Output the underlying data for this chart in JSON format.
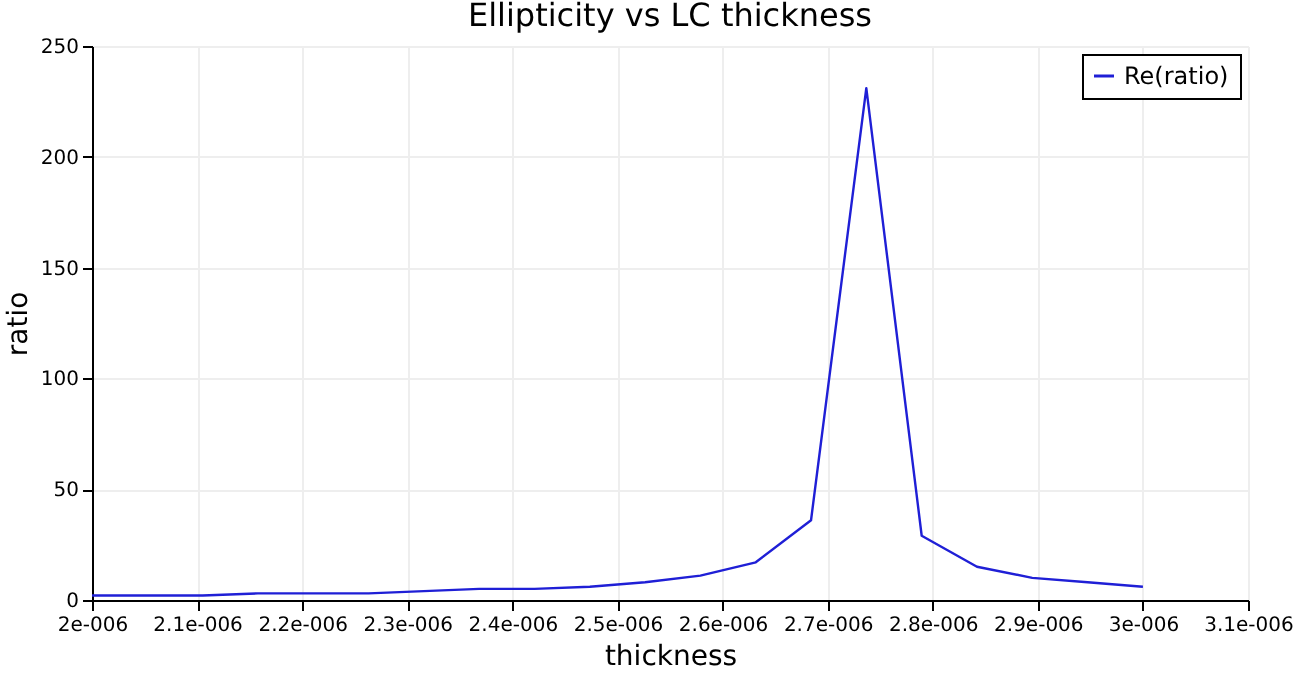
{
  "chart_data": {
    "type": "line",
    "title": "Ellipticity vs LC thickness",
    "xlabel": "thickness",
    "ylabel": "ratio",
    "x": [
      2e-06,
      2.0526e-06,
      2.1053e-06,
      2.1579e-06,
      2.2105e-06,
      2.2632e-06,
      2.3158e-06,
      2.3684e-06,
      2.4211e-06,
      2.4737e-06,
      2.5263e-06,
      2.5789e-06,
      2.6316e-06,
      2.6842e-06,
      2.7368e-06,
      2.7895e-06,
      2.8421e-06,
      2.8947e-06,
      2.9474e-06,
      3e-06
    ],
    "series": [
      {
        "name": "Re(ratio)",
        "color": "#1f1fd6",
        "values": [
          2,
          2,
          2,
          3,
          3,
          3,
          4,
          5,
          5,
          6,
          8,
          11,
          17,
          36,
          231,
          29,
          15,
          10,
          8,
          6
        ]
      }
    ],
    "xlim": [
      2e-06,
      3.1e-06
    ],
    "xticks": [
      {
        "value": 2e-06,
        "label": "2e-006"
      },
      {
        "value": 2.1e-06,
        "label": "2.1e-006"
      },
      {
        "value": 2.2e-06,
        "label": "2.2e-006"
      },
      {
        "value": 2.3e-06,
        "label": "2.3e-006"
      },
      {
        "value": 2.4e-06,
        "label": "2.4e-006"
      },
      {
        "value": 2.5e-06,
        "label": "2.5e-006"
      },
      {
        "value": 2.6e-06,
        "label": "2.6e-006"
      },
      {
        "value": 2.7e-06,
        "label": "2.7e-006"
      },
      {
        "value": 2.8e-06,
        "label": "2.8e-006"
      },
      {
        "value": 2.9e-06,
        "label": "2.9e-006"
      },
      {
        "value": 3e-06,
        "label": "3e-006"
      },
      {
        "value": 3.1e-06,
        "label": "3.1e-006"
      }
    ],
    "ylim": [
      0,
      250
    ],
    "yticks": [
      0,
      50,
      100,
      150,
      200,
      250
    ],
    "grid": true,
    "legend": "top right",
    "marker": "none",
    "line_style": "solid"
  }
}
